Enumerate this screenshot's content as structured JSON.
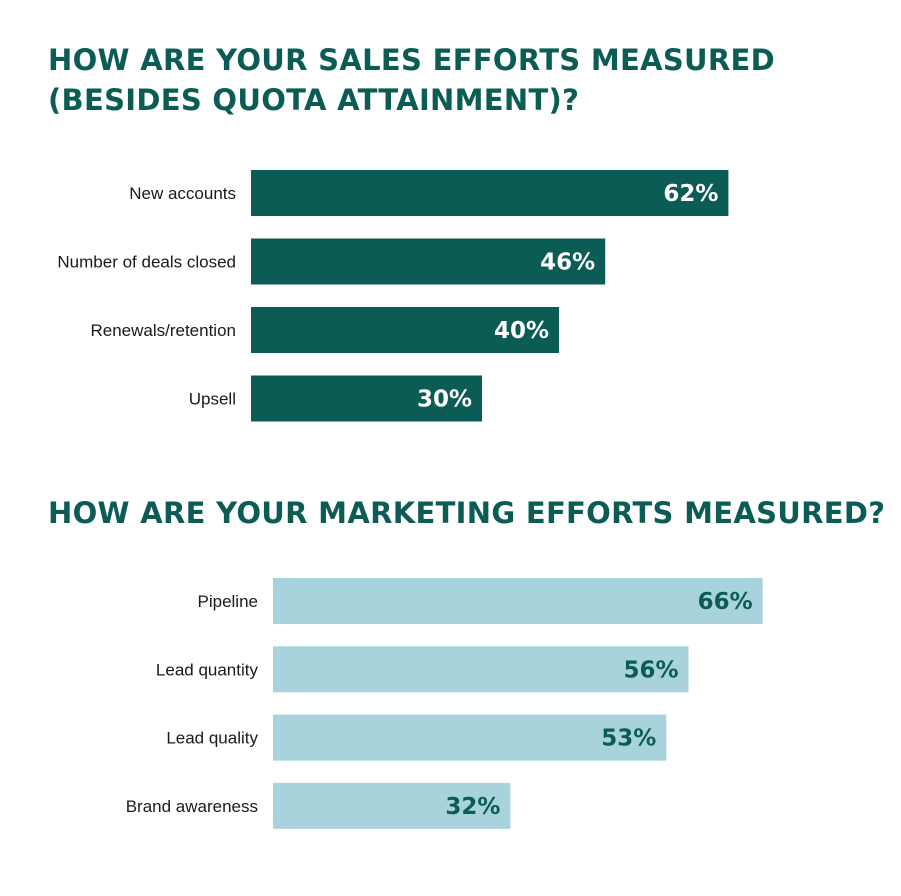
{
  "titles": {
    "sales": "HOW ARE YOUR SALES EFFORTS MEASURED (BESIDES QUOTA ATTAINMENT)?",
    "marketing": "HOW ARE YOUR MARKETING EFFORTS MEASURED?"
  },
  "chart_data": [
    {
      "type": "bar",
      "orientation": "horizontal",
      "title": "HOW ARE YOUR SALES EFFORTS MEASURED (BESIDES QUOTA ATTAINMENT)?",
      "categories": [
        "New accounts",
        "Number of deals closed",
        "Renewals/retention",
        "Upsell"
      ],
      "values": [
        62,
        46,
        40,
        30
      ],
      "value_labels": [
        "62%",
        "46%",
        "40%",
        "30%"
      ],
      "unit": "%",
      "bar_color": "#0b5c54",
      "label_color": "#ffffff",
      "xlim": [
        0,
        100
      ],
      "grid": false,
      "legend": "none"
    },
    {
      "type": "bar",
      "orientation": "horizontal",
      "title": "HOW ARE YOUR MARKETING EFFORTS MEASURED?",
      "categories": [
        "Pipeline",
        "Lead quantity",
        "Lead quality",
        "Brand awareness"
      ],
      "values": [
        66,
        56,
        53,
        32
      ],
      "value_labels": [
        "66%",
        "56%",
        "53%",
        "32%"
      ],
      "unit": "%",
      "bar_color": "#a8d3dd",
      "label_color": "#0b5c54",
      "xlim": [
        0,
        100
      ],
      "grid": false,
      "legend": "none"
    }
  ]
}
